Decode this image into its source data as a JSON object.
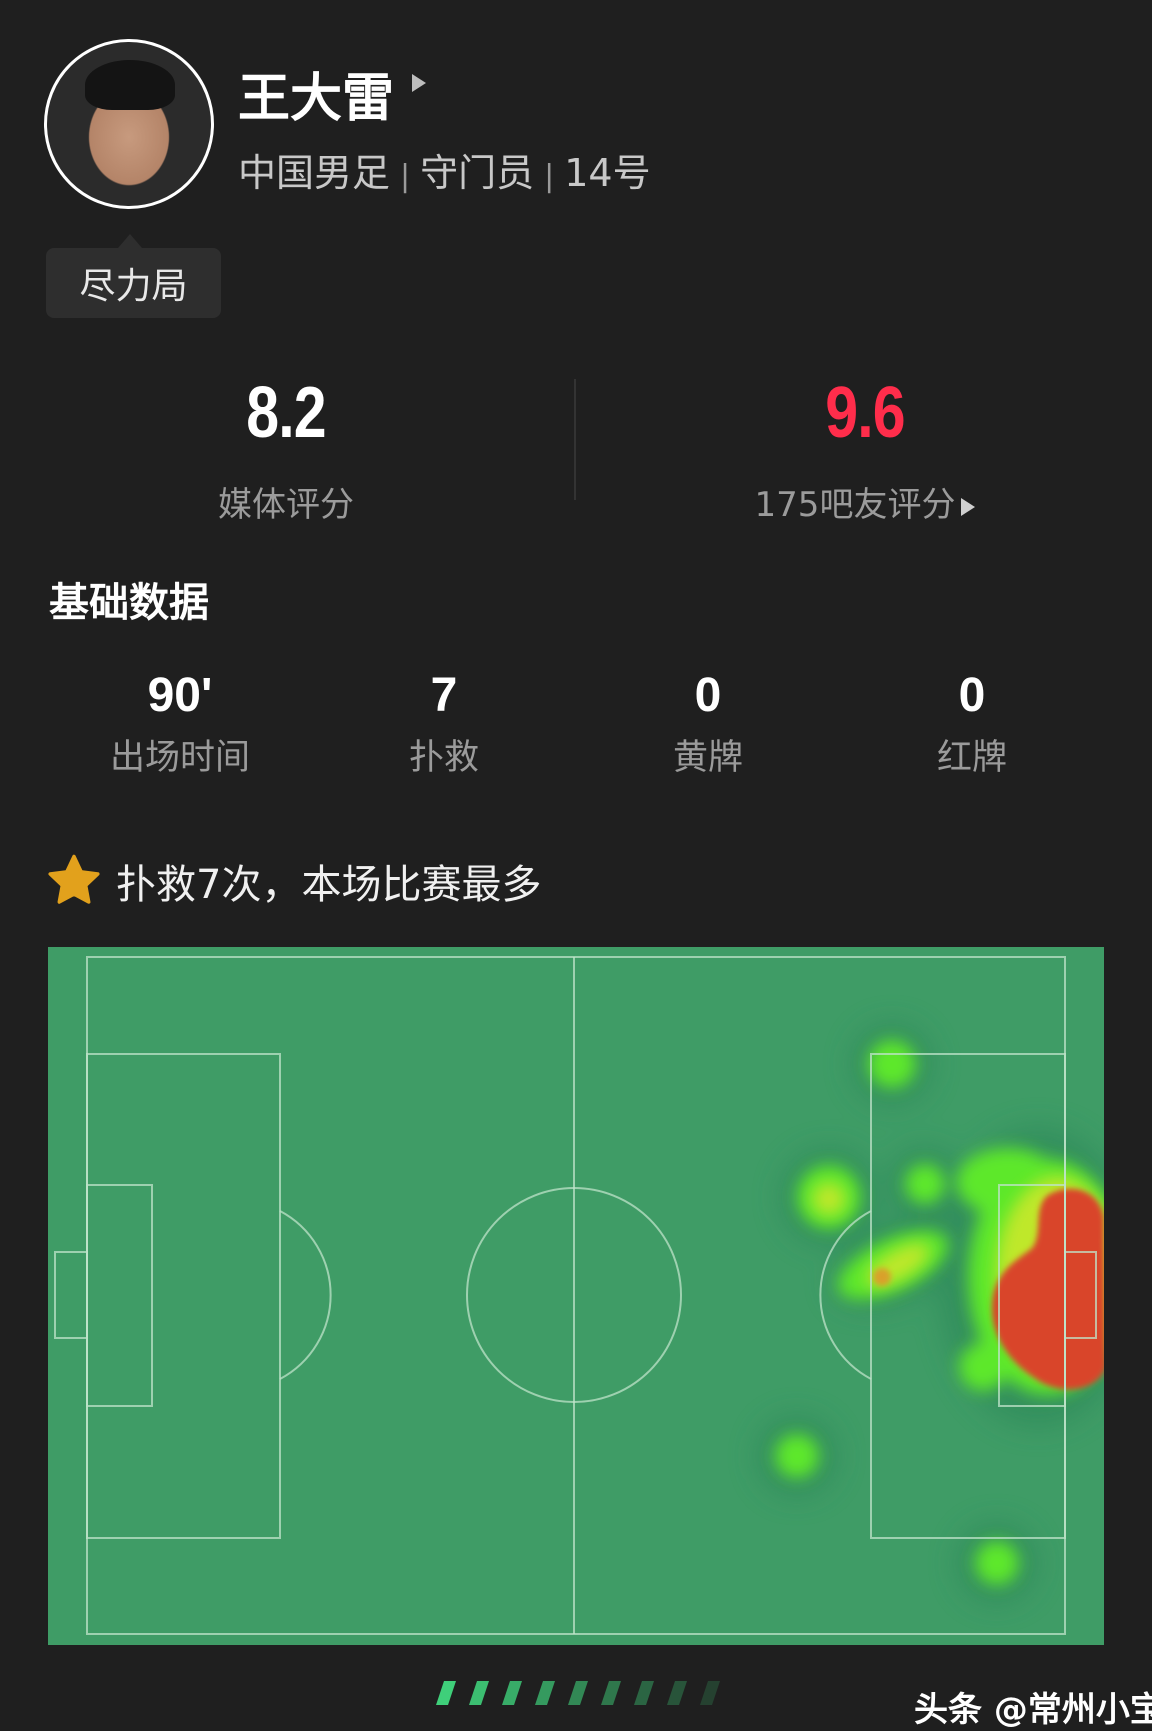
{
  "player": {
    "name": "王大雷",
    "team": "中国男足",
    "position": "守门员",
    "number": "14号",
    "separator": "|",
    "badge": "尽力局",
    "avatar_icon": "player-portrait"
  },
  "ratings": {
    "media": {
      "value": "8.2",
      "label": "媒体评分"
    },
    "fans": {
      "value": "9.6",
      "label": "175吧友评分",
      "color": "#ff2d4b"
    }
  },
  "basic_stats": {
    "title": "基础数据",
    "items": [
      {
        "value": "90'",
        "label": "出场时间"
      },
      {
        "value": "7",
        "label": "扑救"
      },
      {
        "value": "0",
        "label": "黄牌"
      },
      {
        "value": "0",
        "label": "红牌"
      }
    ]
  },
  "highlight": {
    "icon": "star-icon",
    "text": "扑救7次，本场比赛最多",
    "icon_color": "#e2a11c"
  },
  "heatmap": {
    "pitch_color": "#3f9c66",
    "low_color": "#5de82a",
    "mid_color": "#d8e82a",
    "high_color": "#d9452c"
  },
  "watermark": "头条 @常州小宝"
}
